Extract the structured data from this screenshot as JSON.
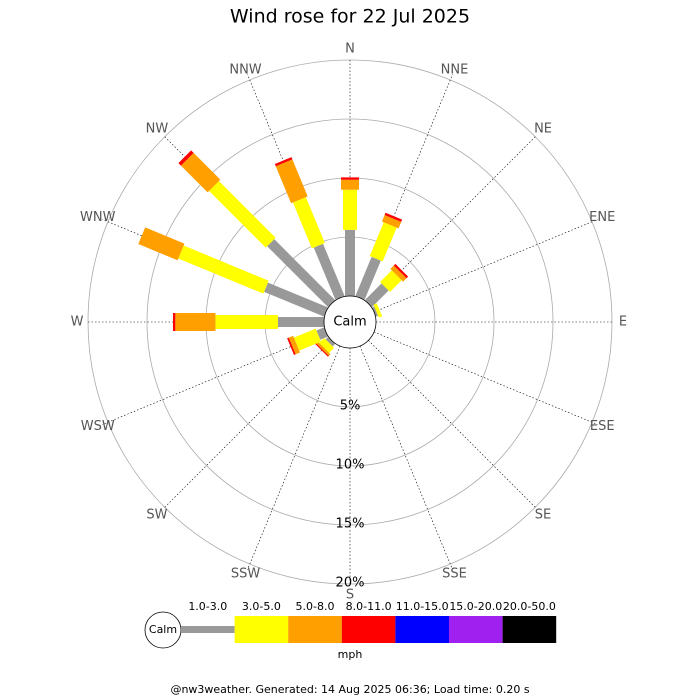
{
  "chart_data": {
    "type": "windrose",
    "title": "Wind rose for 22 Jul 2025",
    "directions": [
      "N",
      "NNE",
      "NE",
      "ENE",
      "E",
      "ESE",
      "SE",
      "SSE",
      "S",
      "SSW",
      "SW",
      "WSW",
      "W",
      "WNW",
      "NW",
      "NNW"
    ],
    "center_label": "Calm",
    "rlim": [
      0,
      20
    ],
    "rticks": [
      {
        "value": 5,
        "label": "5%"
      },
      {
        "value": 10,
        "label": "10%"
      },
      {
        "value": 15,
        "label": "15%"
      },
      {
        "value": 20,
        "label": "20%"
      }
    ],
    "series": [
      {
        "name": "1.0-3.0",
        "color": "#999999",
        "values": [
          5.6,
          3.6,
          2.0,
          0.2,
          0,
          0,
          0,
          0,
          0,
          0,
          0.3,
          0.7,
          3.9,
          5.5,
          7.3,
          4.8
        ]
      },
      {
        "name": "3.0-5.0",
        "color": "#ffff00",
        "values": [
          3.4,
          3.1,
          1.4,
          0.3,
          0,
          0,
          0,
          0,
          0,
          0,
          0.6,
          2.0,
          5.3,
          7.8,
          6.8,
          4.2
        ]
      },
      {
        "name": "5.0-8.0",
        "color": "#ffa000",
        "values": [
          0.85,
          0.6,
          0.4,
          0,
          0,
          0,
          0,
          0,
          0,
          0,
          0.2,
          0.4,
          3.4,
          3.6,
          3.2,
          3.4
        ]
      },
      {
        "name": "8.0-11.0",
        "color": "#ff0000",
        "values": [
          0.2,
          0.2,
          0.2,
          0,
          0,
          0,
          0,
          0,
          0,
          0,
          0.1,
          0.15,
          0.2,
          0,
          0.3,
          0.2
        ]
      },
      {
        "name": "11.0-15.0",
        "color": "#0000ff",
        "values": [
          0,
          0,
          0,
          0,
          0,
          0,
          0,
          0,
          0,
          0,
          0,
          0,
          0,
          0,
          0,
          0
        ]
      },
      {
        "name": "15.0-20.0",
        "color": "#a020f0",
        "values": [
          0,
          0,
          0,
          0,
          0,
          0,
          0,
          0,
          0,
          0,
          0,
          0,
          0,
          0,
          0,
          0
        ]
      },
      {
        "name": "20.0-50.0",
        "color": "#000000",
        "values": [
          0,
          0,
          0,
          0,
          0,
          0,
          0,
          0,
          0,
          0,
          0,
          0,
          0,
          0,
          0,
          0
        ]
      }
    ],
    "legend_unit": "mph",
    "footer": "@nw3weather. Generated: 14 Aug 2025 06:36; Load time: 0.20 s"
  }
}
